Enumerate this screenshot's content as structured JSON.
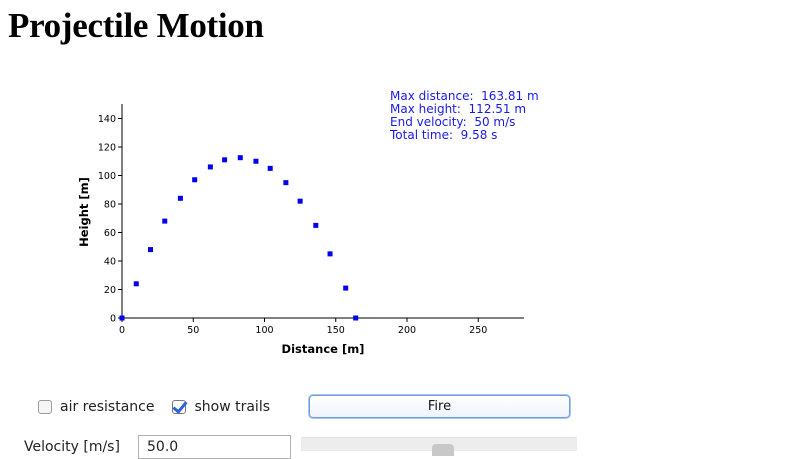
{
  "page": {
    "title": "Projectile Motion"
  },
  "stats": {
    "max_distance": "Max distance:  163.81 m",
    "max_height": "Max height:  112.51 m",
    "end_velocity": "End velocity:  50 m/s",
    "total_time": "Total time:  9.58 s"
  },
  "chart_data": {
    "type": "scatter",
    "title": "",
    "xlabel": "Distance [m]",
    "ylabel": "Height [m]",
    "xlim": [
      0,
      285
    ],
    "ylim": [
      0,
      150
    ],
    "x_ticks": [
      0,
      50,
      100,
      150,
      200,
      250
    ],
    "y_ticks": [
      0,
      20,
      40,
      60,
      80,
      100,
      120,
      140
    ],
    "grid": false,
    "color": "#0000ee",
    "points": [
      {
        "x": 0,
        "y": 0
      },
      {
        "x": 10,
        "y": 24
      },
      {
        "x": 20,
        "y": 48
      },
      {
        "x": 30,
        "y": 68
      },
      {
        "x": 41,
        "y": 84
      },
      {
        "x": 51,
        "y": 97
      },
      {
        "x": 62,
        "y": 106
      },
      {
        "x": 72,
        "y": 111
      },
      {
        "x": 83,
        "y": 112.5
      },
      {
        "x": 94,
        "y": 110
      },
      {
        "x": 104,
        "y": 105
      },
      {
        "x": 115,
        "y": 95
      },
      {
        "x": 125,
        "y": 82
      },
      {
        "x": 136,
        "y": 65
      },
      {
        "x": 146,
        "y": 45
      },
      {
        "x": 157,
        "y": 21
      },
      {
        "x": 164,
        "y": 0
      }
    ]
  },
  "controls": {
    "air_resistance": {
      "label": "air resistance",
      "checked": false
    },
    "show_trails": {
      "label": "show trails",
      "checked": true
    },
    "fire_label": "Fire",
    "velocity_label": "Velocity [m/s]",
    "velocity_value": "50.0",
    "velocity_slider": {
      "min": 0,
      "max": 100,
      "value": 50
    }
  },
  "colors": {
    "accent": "#2d63d6",
    "stats_text": "#1a1ae6",
    "points": "#0000ee"
  }
}
